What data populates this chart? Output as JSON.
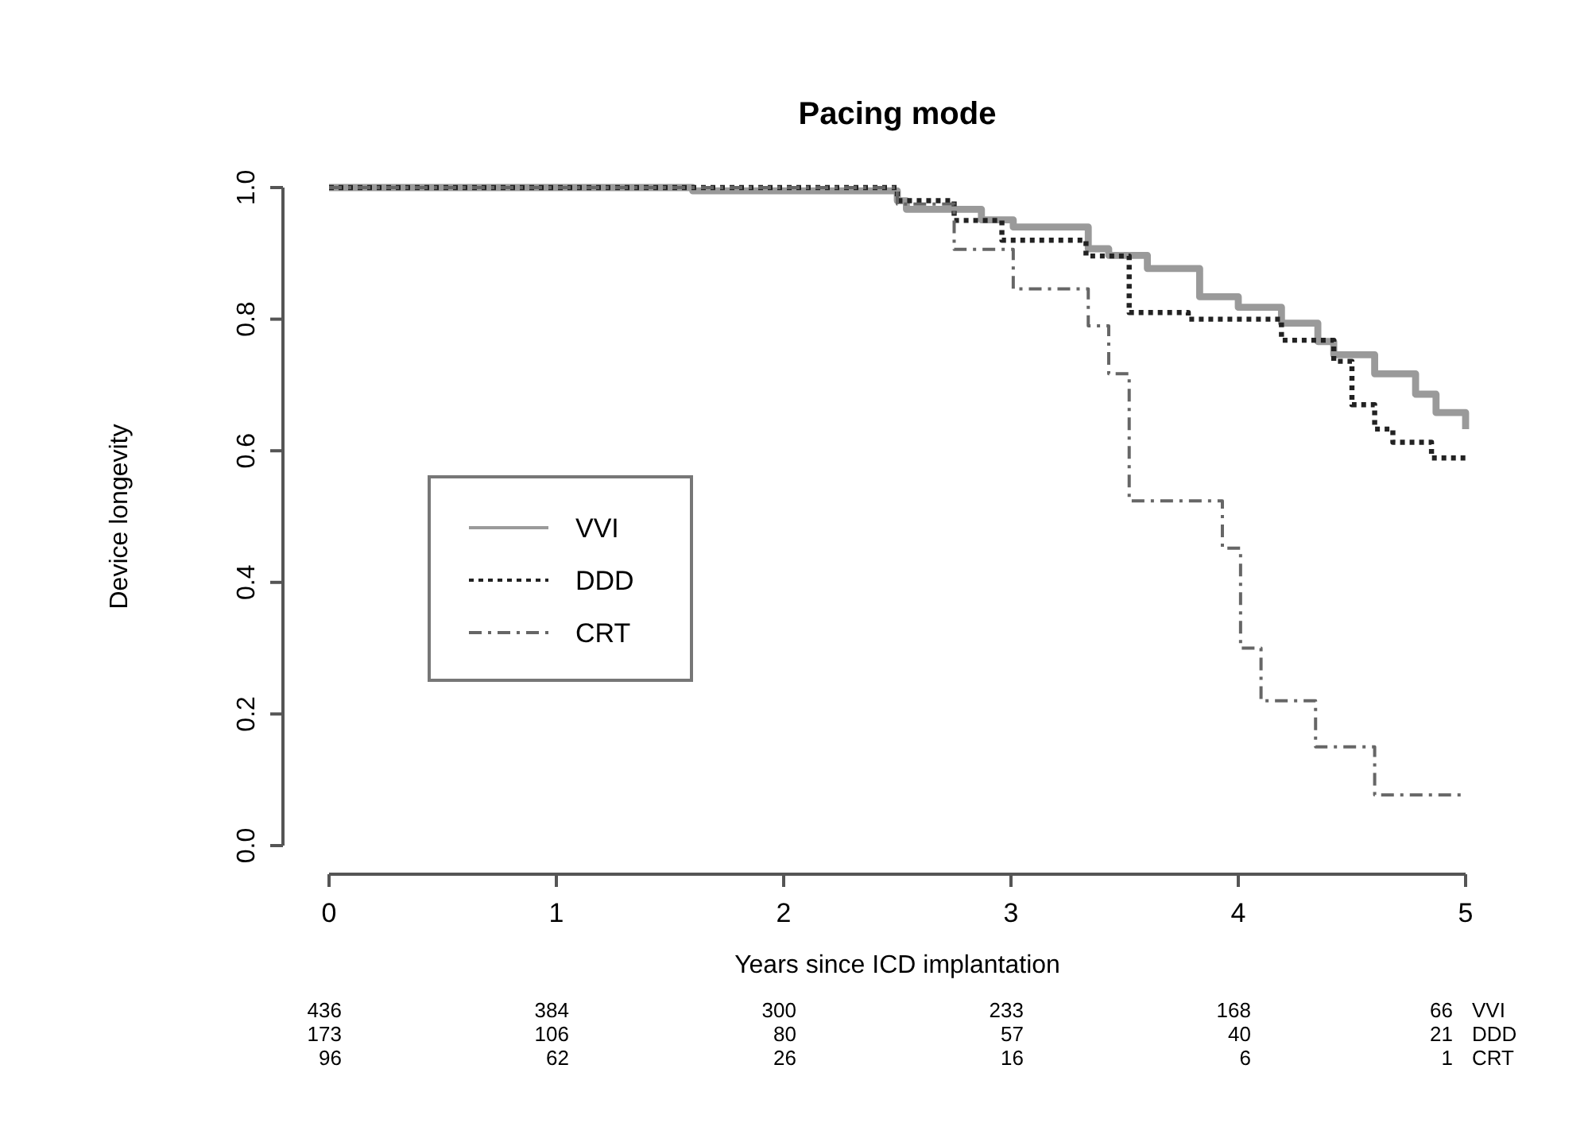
{
  "chart_data": {
    "type": "step",
    "title": "Pacing mode",
    "xlabel": "Years since ICD implantation",
    "ylabel": "Device longevity",
    "xlim": [
      0,
      5
    ],
    "xticks": [
      0,
      1,
      2,
      3,
      4,
      5
    ],
    "ylim": [
      0,
      1
    ],
    "yticks": [
      {
        "value": 0,
        "label": "0.0"
      },
      {
        "value": 0.2,
        "label": "0.2"
      },
      {
        "value": 0.4,
        "label": "0.4"
      },
      {
        "value": 0.6,
        "label": "0.6"
      },
      {
        "value": 0.8,
        "label": "0.8"
      },
      {
        "value": 1,
        "label": "1.0"
      }
    ],
    "grid": false,
    "legend": "center left",
    "series": [
      {
        "name": "VVI",
        "color": "#9a9a9a",
        "line_style": "solid",
        "x": [
          0,
          1.6,
          2.5,
          2.54,
          2.87,
          3.01,
          3.34,
          3.43,
          3.6,
          3.83,
          4.0,
          4.19,
          4.35,
          4.42,
          4.6,
          4.78,
          4.87,
          5.0
        ],
        "values": [
          1,
          0.995,
          0.98,
          0.967,
          0.951,
          0.94,
          0.907,
          0.897,
          0.877,
          0.834,
          0.818,
          0.794,
          0.766,
          0.746,
          0.717,
          0.686,
          0.658,
          0.633
        ]
      },
      {
        "name": "DDD",
        "color": "#222222",
        "line_style": "dotted",
        "x": [
          0,
          0.5,
          2.5,
          2.75,
          2.96,
          3.33,
          3.52,
          3.78,
          4.19,
          4.42,
          4.5,
          4.6,
          4.68,
          4.85,
          5.0
        ],
        "values": [
          1,
          1,
          0.98,
          0.95,
          0.92,
          0.896,
          0.81,
          0.8,
          0.768,
          0.736,
          0.67,
          0.633,
          0.613,
          0.589,
          0.589
        ]
      },
      {
        "name": "CRT",
        "color": "#666666",
        "line_style": "dashed",
        "x": [
          0,
          2.5,
          2.75,
          3.01,
          3.34,
          3.43,
          3.52,
          3.93,
          4.01,
          4.1,
          4.34,
          4.6,
          5.0
        ],
        "values": [
          1,
          0.975,
          0.906,
          0.846,
          0.79,
          0.717,
          0.524,
          0.452,
          0.3,
          0.22,
          0.15,
          0.077,
          0.077
        ]
      }
    ],
    "annotations": [
      "436",
      "384",
      "300",
      "233",
      "168",
      "66",
      "VVI",
      "173",
      "106",
      "80",
      "57",
      "40",
      "21",
      "DDD",
      "96",
      "62",
      "26",
      "16",
      "6",
      "1",
      "CRT"
    ]
  }
}
